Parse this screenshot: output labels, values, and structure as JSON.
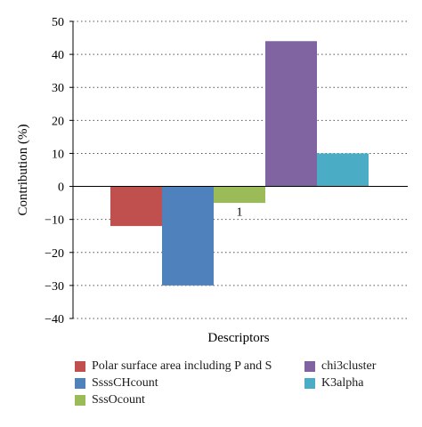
{
  "chart_data": {
    "type": "bar",
    "title": "",
    "xlabel": "Descriptors",
    "ylabel": "Contribution (%)",
    "categories": [
      "1"
    ],
    "ylim": [
      -40,
      50
    ],
    "yticks": [
      50,
      40,
      30,
      20,
      10,
      0,
      -10,
      -20,
      -30,
      -40
    ],
    "ytick_labels": [
      "50",
      "40",
      "30",
      "20",
      "10",
      "0",
      "−10",
      "−20",
      "−30",
      "−40"
    ],
    "grid": "horizontal-dotted",
    "legend_position": "bottom",
    "series": [
      {
        "name": "Polar surface area including P and S",
        "values": [
          -12
        ],
        "color": "#c0504d"
      },
      {
        "name": "SsssCHcount",
        "values": [
          -30
        ],
        "color": "#4f81bd"
      },
      {
        "name": "SssOcount",
        "values": [
          -5
        ],
        "color": "#9bbb59"
      },
      {
        "name": "chi3cluster",
        "values": [
          44
        ],
        "color": "#8064a2"
      },
      {
        "name": "K3alpha",
        "values": [
          10
        ],
        "color": "#4bacc6"
      }
    ]
  }
}
